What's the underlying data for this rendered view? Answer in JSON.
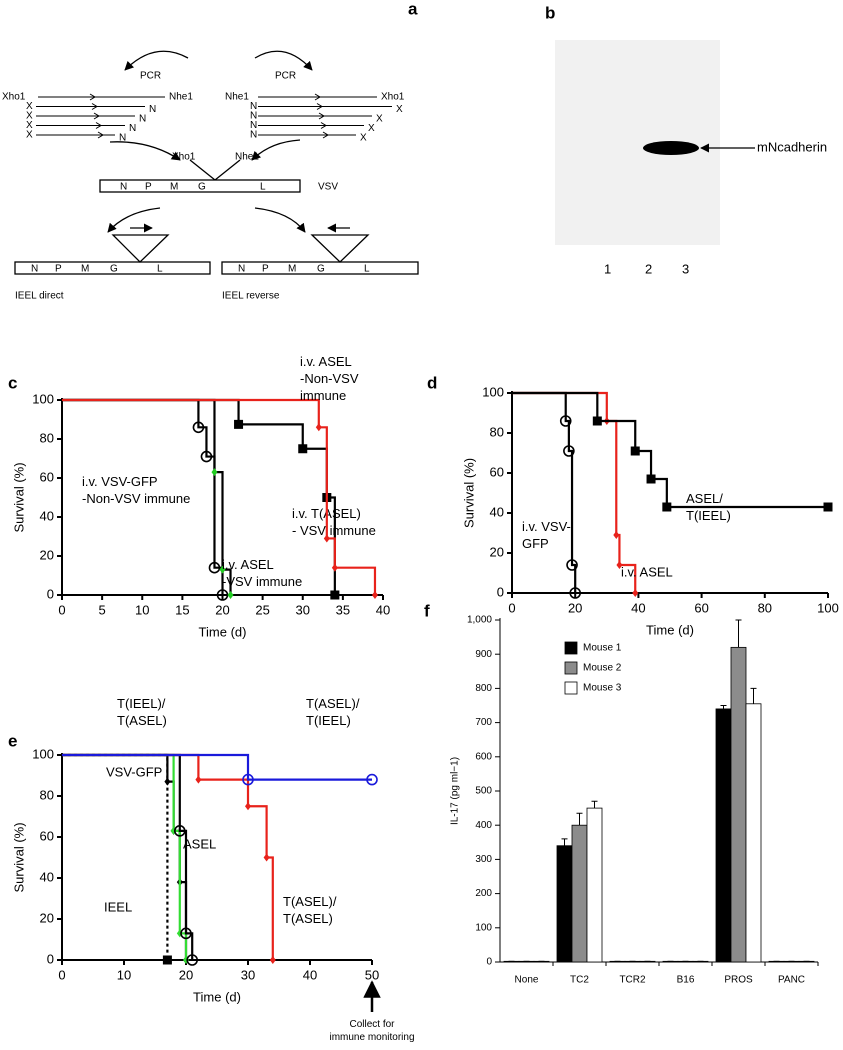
{
  "panel_labels": [
    "a",
    "b",
    "c",
    "d",
    "e",
    "f"
  ],
  "diagram": {
    "pcr": [
      "PCR",
      "PCR"
    ],
    "left_fragments": [
      [
        "Xho1",
        "Nhe1"
      ],
      [
        "X",
        "N"
      ],
      [
        "X",
        "N"
      ],
      [
        "X",
        "N"
      ],
      [
        "X",
        "N"
      ]
    ],
    "right_fragments": [
      [
        "Nhe1",
        "Xho1"
      ],
      [
        "N",
        "X"
      ],
      [
        "N",
        "X"
      ],
      [
        "N",
        "X"
      ],
      [
        "N",
        "X"
      ]
    ],
    "insert_sites": [
      "Xho1",
      "Nhe1"
    ],
    "genome": [
      "N",
      "P",
      "M",
      "G",
      "L"
    ],
    "genome_label": "VSV",
    "constructs": [
      {
        "genes": [
          "N",
          "P",
          "M",
          "G",
          "L"
        ],
        "label": "IEEL direct"
      },
      {
        "genes": [
          "N",
          "P",
          "M",
          "G",
          "L"
        ],
        "label": "IEEL reverse"
      }
    ]
  },
  "blot": {
    "lanes": [
      "1",
      "2",
      "3"
    ],
    "band_label": "mNcadherin"
  },
  "chart_data": [
    {
      "type": "step",
      "xlabel": "Time (d)",
      "ylabel": "Survival (%)",
      "xlim": [
        0,
        40
      ],
      "xticks": [
        0,
        5,
        10,
        15,
        20,
        25,
        30,
        35,
        40
      ],
      "ylim": [
        0,
        100
      ],
      "yticks": [
        0,
        20,
        40,
        60,
        80,
        100
      ],
      "series": [
        {
          "name": "i.v. VSV-GFP\n-Non-VSV immune",
          "color": "#000000",
          "marker": "circle",
          "x": [
            0,
            17,
            18,
            19,
            20
          ],
          "values": [
            100,
            86,
            71,
            14,
            0
          ]
        },
        {
          "name": "i.v. ASEL\n-VSV immune",
          "color": "#22cc22",
          "line_color": "#000000",
          "marker": "diamond",
          "x": [
            0,
            19,
            20,
            21
          ],
          "values": [
            100,
            63,
            13,
            0
          ]
        },
        {
          "name": "i.v. T(ASEL)\n- VSV immune",
          "color": "#000000",
          "marker": "square",
          "x": [
            0,
            22,
            30,
            33,
            34
          ],
          "values": [
            100,
            87.5,
            75,
            50,
            0
          ]
        },
        {
          "name": "i.v. ASEL\n-Non-VSV\nimmune",
          "color": "#e8221b",
          "marker": "diamond",
          "x": [
            0,
            32,
            33,
            34,
            39
          ],
          "values": [
            100,
            86,
            29,
            14,
            0
          ]
        }
      ]
    },
    {
      "type": "step",
      "xlabel": "Time (d)",
      "ylabel": "Survival (%)",
      "xlim": [
        0,
        100
      ],
      "xticks": [
        0,
        20,
        40,
        60,
        80,
        100
      ],
      "ylim": [
        0,
        100
      ],
      "yticks": [
        0,
        20,
        40,
        60,
        80,
        100
      ],
      "series": [
        {
          "name": "i.v. VSV-\nGFP",
          "color": "#000000",
          "marker": "circle",
          "x": [
            0,
            17,
            18,
            19,
            20
          ],
          "values": [
            100,
            86,
            71,
            14,
            0
          ]
        },
        {
          "name": "i.v. ASEL",
          "color": "#e8221b",
          "marker": "diamond",
          "x": [
            0,
            30,
            33,
            34,
            39
          ],
          "values": [
            100,
            86,
            29,
            14,
            0
          ]
        },
        {
          "name": "ASEL/\nT(IEEL)",
          "color": "#000000",
          "marker": "square",
          "x": [
            0,
            27,
            39,
            44,
            49,
            100
          ],
          "values": [
            100,
            86,
            71,
            57,
            43,
            43
          ]
        }
      ]
    },
    {
      "type": "step",
      "xlabel": "Time (d)",
      "ylabel": "Survival (%)",
      "xlim": [
        0,
        50
      ],
      "xticks": [
        0,
        10,
        20,
        30,
        40,
        50
      ],
      "ylim": [
        0,
        100
      ],
      "yticks": [
        0,
        20,
        40,
        60,
        80,
        100
      ],
      "annotation": "Collect for\nimmune monitoring",
      "series": [
        {
          "name": "VSV-GFP",
          "color": "#000000",
          "marker": "diamond",
          "x": [
            0,
            17,
            18,
            19,
            20
          ],
          "values": [
            100,
            87,
            63,
            38,
            0
          ]
        },
        {
          "name": "IEEL",
          "color": "#000000",
          "marker": "square",
          "dash": true,
          "x": [
            0,
            17
          ],
          "values": [
            100,
            0
          ]
        },
        {
          "name": "T(IEEL)/\nT(ASEL)",
          "color": "#33dd33",
          "marker": "diamond",
          "x": [
            0,
            18,
            19,
            20
          ],
          "values": [
            100,
            63,
            13,
            0
          ]
        },
        {
          "name": "ASEL",
          "color": "#000000",
          "marker": "circle",
          "x": [
            0,
            19,
            20,
            21
          ],
          "values": [
            100,
            63,
            13,
            0
          ]
        },
        {
          "name": "T(ASEL)/\nT(ASEL)",
          "color": "#e8221b",
          "marker": "diamond",
          "x": [
            0,
            22,
            30,
            33,
            34
          ],
          "values": [
            100,
            88,
            75,
            50,
            0
          ]
        },
        {
          "name": "T(ASEL)/\nT(IEEL)",
          "color": "#1a1adb",
          "marker": "circle",
          "x": [
            0,
            30,
            50
          ],
          "values": [
            100,
            88,
            88
          ]
        }
      ]
    },
    {
      "type": "bar",
      "ylabel": "IL-17 (pg ml−1)",
      "ylim": [
        0,
        1000
      ],
      "yticks": [
        0,
        100,
        200,
        300,
        400,
        500,
        600,
        700,
        800,
        900,
        {
          "value": 1000,
          "label": "1,000"
        }
      ],
      "legend": "top-left",
      "categories": [
        "None",
        "TC2",
        "TCR2",
        "B16",
        "PROS",
        "PANC"
      ],
      "series": [
        {
          "name": "Mouse 1",
          "color": "#000000",
          "values": [
            2,
            340,
            2,
            2,
            740,
            2
          ],
          "errors": [
            0,
            20,
            0,
            0,
            10,
            0
          ]
        },
        {
          "name": "Mouse 2",
          "color": "#8c8c8c",
          "values": [
            2,
            400,
            2,
            2,
            920,
            2
          ],
          "errors": [
            0,
            35,
            0,
            0,
            80,
            0
          ]
        },
        {
          "name": "Mouse 3",
          "color": "#ffffff",
          "values": [
            2,
            450,
            2,
            2,
            755,
            2
          ],
          "errors": [
            0,
            20,
            0,
            0,
            45,
            0
          ]
        }
      ]
    }
  ]
}
